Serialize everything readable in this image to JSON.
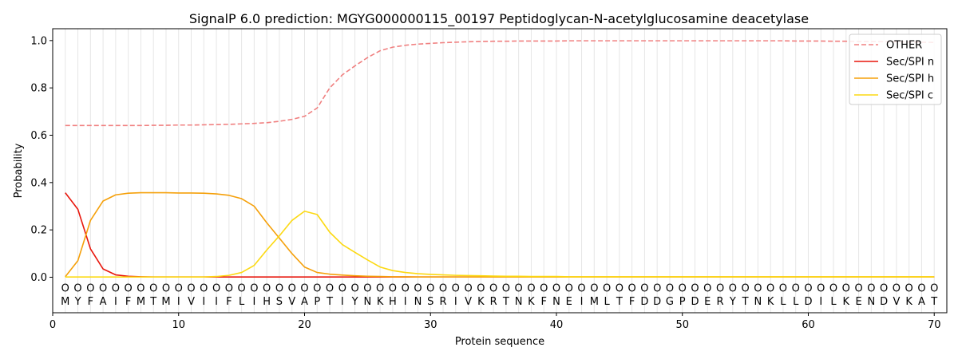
{
  "chart_data": {
    "type": "line",
    "title": "SignalP 6.0 prediction: MGYG000000115_00197 Peptidoglycan-N-acetylglucosamine deacetylase",
    "xlabel": "Protein sequence",
    "ylabel": "Probability",
    "xlim": [
      0,
      71
    ],
    "ylim": [
      -0.15,
      1.05
    ],
    "xticks": [
      0,
      10,
      20,
      30,
      40,
      50,
      60,
      70
    ],
    "yticks": [
      0.0,
      0.2,
      0.4,
      0.6,
      0.8,
      1.0
    ],
    "legend_position": "top-right",
    "sequence": [
      "M",
      "Y",
      "F",
      "A",
      "I",
      "F",
      "M",
      "T",
      "M",
      "I",
      "V",
      "I",
      "I",
      "F",
      "L",
      "I",
      "H",
      "S",
      "V",
      "A",
      "P",
      "T",
      "I",
      "Y",
      "N",
      "K",
      "H",
      "I",
      "N",
      "S",
      "R",
      "I",
      "V",
      "K",
      "R",
      "T",
      "N",
      "K",
      "F",
      "N",
      "E",
      "I",
      "M",
      "L",
      "T",
      "F",
      "D",
      "D",
      "G",
      "P",
      "D",
      "E",
      "R",
      "Y",
      "T",
      "N",
      "K",
      "L",
      "L",
      "D",
      "I",
      "L",
      "K",
      "E",
      "N",
      "D",
      "V",
      "K",
      "A",
      "T"
    ],
    "region_label": "O",
    "series": [
      {
        "name": "OTHER",
        "color": "#f08080",
        "dashed": true,
        "values": [
          0.641,
          0.641,
          0.641,
          0.641,
          0.641,
          0.641,
          0.641,
          0.642,
          0.642,
          0.643,
          0.643,
          0.644,
          0.645,
          0.646,
          0.648,
          0.65,
          0.653,
          0.659,
          0.667,
          0.68,
          0.715,
          0.8,
          0.855,
          0.893,
          0.928,
          0.957,
          0.972,
          0.98,
          0.985,
          0.988,
          0.991,
          0.993,
          0.995,
          0.996,
          0.997,
          0.997,
          0.998,
          0.998,
          0.998,
          0.998,
          0.999,
          0.999,
          0.999,
          0.999,
          0.999,
          0.999,
          0.999,
          0.999,
          0.999,
          0.999,
          0.999,
          0.999,
          0.999,
          0.999,
          0.999,
          0.999,
          0.999,
          0.999,
          0.998,
          0.998,
          0.998,
          0.997,
          0.997,
          0.996,
          0.996,
          0.995,
          0.995,
          0.994,
          0.993,
          0.992
        ]
      },
      {
        "name": "Sec/SPI n",
        "color": "#e8160c",
        "dashed": false,
        "values": [
          0.357,
          0.287,
          0.12,
          0.035,
          0.01,
          0.004,
          0.002,
          0.001,
          0.001,
          0.001,
          0.001,
          0.001,
          0.001,
          0.001,
          0.001,
          0.001,
          0.001,
          0.001,
          0.001,
          0.001,
          0.001,
          0.001,
          0.001,
          0.001,
          0.001,
          0.001,
          0.001,
          0.001,
          0.001,
          0.001,
          0.001,
          0.001,
          0.001,
          0.001,
          0.001,
          0.001,
          0.001,
          0.001,
          0.001,
          0.001,
          0.001,
          0.001,
          0.001,
          0.001,
          0.001,
          0.001,
          0.001,
          0.001,
          0.001,
          0.001,
          0.001,
          0.001,
          0.001,
          0.001,
          0.001,
          0.001,
          0.001,
          0.001,
          0.001,
          0.001,
          0.001,
          0.001,
          0.001,
          0.001,
          0.001,
          0.001,
          0.001,
          0.001,
          0.001,
          0.001
        ]
      },
      {
        "name": "Sec/SPI h",
        "color": "#f5a00a",
        "dashed": false,
        "values": [
          0.002,
          0.07,
          0.24,
          0.322,
          0.348,
          0.355,
          0.357,
          0.357,
          0.357,
          0.356,
          0.356,
          0.355,
          0.352,
          0.346,
          0.332,
          0.3,
          0.23,
          0.165,
          0.1,
          0.043,
          0.02,
          0.013,
          0.009,
          0.006,
          0.004,
          0.003,
          0.002,
          0.002,
          0.001,
          0.001,
          0.001,
          0.001,
          0.001,
          0.001,
          0.001,
          0.001,
          0.001,
          0.001,
          0.001,
          0.001,
          0.001,
          0.001,
          0.001,
          0.001,
          0.001,
          0.001,
          0.001,
          0.001,
          0.001,
          0.001,
          0.001,
          0.001,
          0.001,
          0.001,
          0.001,
          0.001,
          0.001,
          0.001,
          0.001,
          0.001,
          0.001,
          0.001,
          0.001,
          0.001,
          0.001,
          0.001,
          0.001,
          0.001,
          0.001,
          0.001
        ]
      },
      {
        "name": "Sec/SPI c",
        "color": "#fcd912",
        "dashed": false,
        "values": [
          0.001,
          0.001,
          0.001,
          0.001,
          0.001,
          0.001,
          0.001,
          0.001,
          0.001,
          0.001,
          0.001,
          0.001,
          0.003,
          0.008,
          0.02,
          0.05,
          0.115,
          0.175,
          0.24,
          0.279,
          0.265,
          0.19,
          0.138,
          0.105,
          0.073,
          0.043,
          0.028,
          0.02,
          0.015,
          0.012,
          0.01,
          0.008,
          0.007,
          0.006,
          0.005,
          0.004,
          0.004,
          0.003,
          0.003,
          0.003,
          0.002,
          0.002,
          0.002,
          0.002,
          0.002,
          0.002,
          0.002,
          0.002,
          0.002,
          0.002,
          0.002,
          0.002,
          0.002,
          0.002,
          0.002,
          0.002,
          0.002,
          0.002,
          0.002,
          0.002,
          0.002,
          0.002,
          0.002,
          0.002,
          0.002,
          0.002,
          0.002,
          0.002,
          0.002,
          0.002
        ]
      }
    ]
  }
}
